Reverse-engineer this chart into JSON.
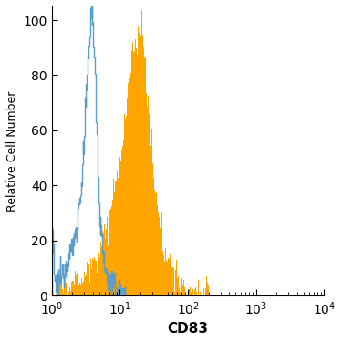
{
  "title": "",
  "xlabel": "CD83",
  "ylabel": "Relative Cell Number",
  "xlim": [
    1,
    10000
  ],
  "ylim": [
    0,
    105
  ],
  "yticks": [
    0,
    20,
    40,
    60,
    80,
    100
  ],
  "blue_color": "#5b9dc9",
  "orange_color": "#FFA500",
  "blue_data": [
    [
      1.0,
      27
    ],
    [
      1.1,
      4
    ],
    [
      1.2,
      5
    ],
    [
      1.3,
      6
    ],
    [
      1.4,
      7
    ],
    [
      1.5,
      9
    ],
    [
      1.6,
      11
    ],
    [
      1.7,
      13
    ],
    [
      1.8,
      15
    ],
    [
      1.9,
      16
    ],
    [
      2.0,
      18
    ],
    [
      2.1,
      20
    ],
    [
      2.2,
      22
    ],
    [
      2.3,
      25
    ],
    [
      2.4,
      28
    ],
    [
      2.5,
      32
    ],
    [
      2.6,
      36
    ],
    [
      2.7,
      40
    ],
    [
      2.8,
      45
    ],
    [
      2.9,
      52
    ],
    [
      3.0,
      58
    ],
    [
      3.1,
      65
    ],
    [
      3.2,
      72
    ],
    [
      3.3,
      79
    ],
    [
      3.4,
      85
    ],
    [
      3.5,
      91
    ],
    [
      3.6,
      95
    ],
    [
      3.7,
      100
    ],
    [
      3.8,
      103
    ],
    [
      3.9,
      101
    ],
    [
      4.0,
      98
    ],
    [
      4.1,
      94
    ],
    [
      4.2,
      89
    ],
    [
      4.3,
      83
    ],
    [
      4.4,
      76
    ],
    [
      4.5,
      68
    ],
    [
      4.6,
      60
    ],
    [
      4.7,
      52
    ],
    [
      4.8,
      44
    ],
    [
      4.9,
      37
    ],
    [
      5.0,
      30
    ],
    [
      5.2,
      24
    ],
    [
      5.5,
      18
    ],
    [
      5.8,
      13
    ],
    [
      6.0,
      10
    ],
    [
      6.5,
      7
    ],
    [
      7.0,
      5
    ],
    [
      8.0,
      3
    ],
    [
      9.0,
      2
    ],
    [
      10.0,
      1
    ],
    [
      12.0,
      0
    ]
  ],
  "orange_data": [
    [
      1.0,
      2
    ],
    [
      1.2,
      3
    ],
    [
      1.5,
      4
    ],
    [
      2.0,
      5
    ],
    [
      2.5,
      7
    ],
    [
      3.0,
      9
    ],
    [
      3.5,
      12
    ],
    [
      4.0,
      14
    ],
    [
      4.5,
      16
    ],
    [
      5.0,
      17
    ],
    [
      5.5,
      19
    ],
    [
      6.0,
      21
    ],
    [
      6.5,
      24
    ],
    [
      7.0,
      27
    ],
    [
      7.5,
      31
    ],
    [
      8.0,
      35
    ],
    [
      8.5,
      39
    ],
    [
      9.0,
      43
    ],
    [
      9.5,
      47
    ],
    [
      10.0,
      50
    ],
    [
      10.5,
      53
    ],
    [
      11.0,
      57
    ],
    [
      11.5,
      61
    ],
    [
      12.0,
      65
    ],
    [
      12.5,
      69
    ],
    [
      13.0,
      73
    ],
    [
      13.5,
      77
    ],
    [
      14.0,
      81
    ],
    [
      14.5,
      84
    ],
    [
      15.0,
      87
    ],
    [
      15.5,
      89
    ],
    [
      16.0,
      90
    ],
    [
      16.5,
      91
    ],
    [
      17.0,
      92
    ],
    [
      17.5,
      88
    ],
    [
      18.0,
      91
    ],
    [
      18.5,
      93
    ],
    [
      19.0,
      97
    ],
    [
      19.5,
      100
    ],
    [
      20.0,
      103
    ],
    [
      20.5,
      101
    ],
    [
      21.0,
      99
    ],
    [
      21.5,
      96
    ],
    [
      22.0,
      93
    ],
    [
      22.5,
      90
    ],
    [
      23.0,
      86
    ],
    [
      23.5,
      82
    ],
    [
      24.0,
      78
    ],
    [
      25.0,
      72
    ],
    [
      26.0,
      66
    ],
    [
      27.0,
      60
    ],
    [
      28.0,
      54
    ],
    [
      30.0,
      47
    ],
    [
      32.0,
      41
    ],
    [
      34.0,
      36
    ],
    [
      36.0,
      31
    ],
    [
      38.0,
      26
    ],
    [
      40.0,
      22
    ],
    [
      45.0,
      17
    ],
    [
      50.0,
      14
    ],
    [
      55.0,
      11
    ],
    [
      60.0,
      9
    ],
    [
      70.0,
      7
    ],
    [
      80.0,
      5
    ],
    [
      90.0,
      4
    ],
    [
      100.0,
      3
    ],
    [
      120.0,
      2
    ],
    [
      150.0,
      1
    ],
    [
      200.0,
      0
    ]
  ]
}
